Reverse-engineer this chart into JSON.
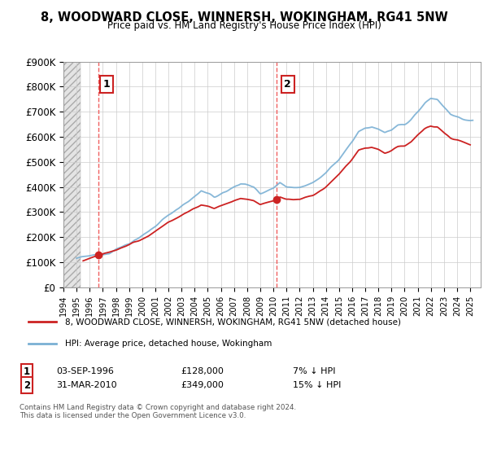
{
  "title": "8, WOODWARD CLOSE, WINNERSH, WOKINGHAM, RG41 5NW",
  "subtitle": "Price paid vs. HM Land Registry's House Price Index (HPI)",
  "ylim": [
    0,
    900000
  ],
  "yticks": [
    0,
    100000,
    200000,
    300000,
    400000,
    500000,
    600000,
    700000,
    800000,
    900000
  ],
  "ytick_labels": [
    "£0",
    "£100K",
    "£200K",
    "£300K",
    "£400K",
    "£500K",
    "£600K",
    "£700K",
    "£800K",
    "£900K"
  ],
  "hpi_color": "#7ab0d4",
  "price_color": "#cc2222",
  "marker_color": "#cc2222",
  "dashed_line_color": "#ee4444",
  "purchase1_x": 1996.67,
  "purchase1_y": 128000,
  "purchase2_x": 2010.25,
  "purchase2_y": 349000,
  "purchase1_date": "03-SEP-1996",
  "purchase1_price": "£128,000",
  "purchase1_hpi": "7% ↓ HPI",
  "purchase2_date": "31-MAR-2010",
  "purchase2_price": "£349,000",
  "purchase2_hpi": "15% ↓ HPI",
  "legend_label1": "8, WOODWARD CLOSE, WINNERSH, WOKINGHAM, RG41 5NW (detached house)",
  "legend_label2": "HPI: Average price, detached house, Wokingham",
  "footer": "Contains HM Land Registry data © Crown copyright and database right 2024.\nThis data is licensed under the Open Government Licence v3.0.",
  "grid_color": "#cccccc",
  "xlim_left": 1994.0,
  "xlim_right": 2025.8
}
